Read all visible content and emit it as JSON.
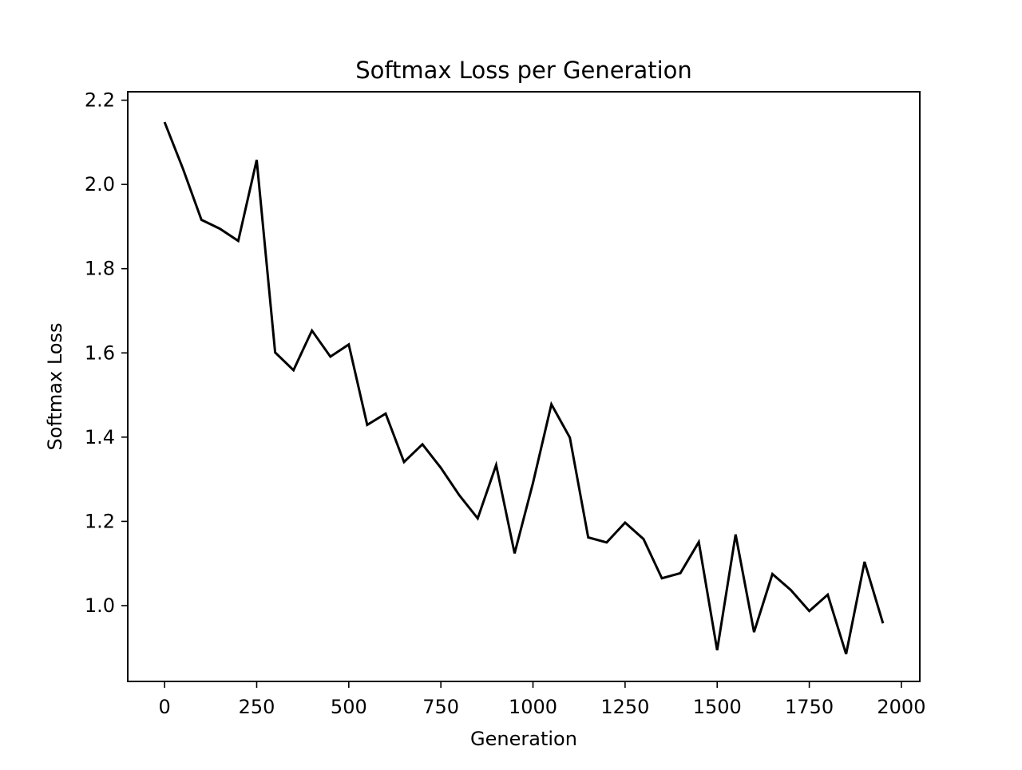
{
  "chart_data": {
    "type": "line",
    "title": "Softmax Loss per Generation",
    "xlabel": "Generation",
    "ylabel": "Softmax Loss",
    "xlim": [
      -100,
      2050
    ],
    "ylim": [
      0.82,
      2.22
    ],
    "xticks": [
      0,
      250,
      500,
      750,
      1000,
      1250,
      1500,
      1750,
      2000
    ],
    "yticks": [
      1.0,
      1.2,
      1.4,
      1.6,
      1.8,
      2.0,
      2.2
    ],
    "xtick_labels": [
      "0",
      "250",
      "500",
      "750",
      "1000",
      "1250",
      "1500",
      "1750",
      "2000"
    ],
    "ytick_labels": [
      "1.0",
      "1.2",
      "1.4",
      "1.6",
      "1.8",
      "2.0",
      "2.2"
    ],
    "grid": false,
    "series": [
      {
        "color": "#000000",
        "x": [
          0,
          50,
          100,
          150,
          200,
          250,
          300,
          350,
          400,
          450,
          500,
          550,
          600,
          650,
          700,
          750,
          800,
          850,
          900,
          950,
          1000,
          1050,
          1100,
          1150,
          1200,
          1250,
          1300,
          1350,
          1400,
          1450,
          1500,
          1550,
          1600,
          1650,
          1700,
          1750,
          1800,
          1850,
          1900,
          1950
        ],
        "y": [
          2.148,
          2.037,
          1.916,
          1.895,
          1.866,
          2.058,
          1.601,
          1.559,
          1.653,
          1.591,
          1.62,
          1.429,
          1.456,
          1.341,
          1.383,
          1.327,
          1.262,
          1.207,
          1.334,
          1.124,
          1.291,
          1.478,
          1.399,
          1.162,
          1.15,
          1.197,
          1.158,
          1.065,
          1.077,
          1.151,
          0.894,
          1.169,
          0.937,
          1.075,
          1.037,
          0.987,
          1.026,
          0.885,
          1.104,
          0.958
        ]
      }
    ]
  }
}
